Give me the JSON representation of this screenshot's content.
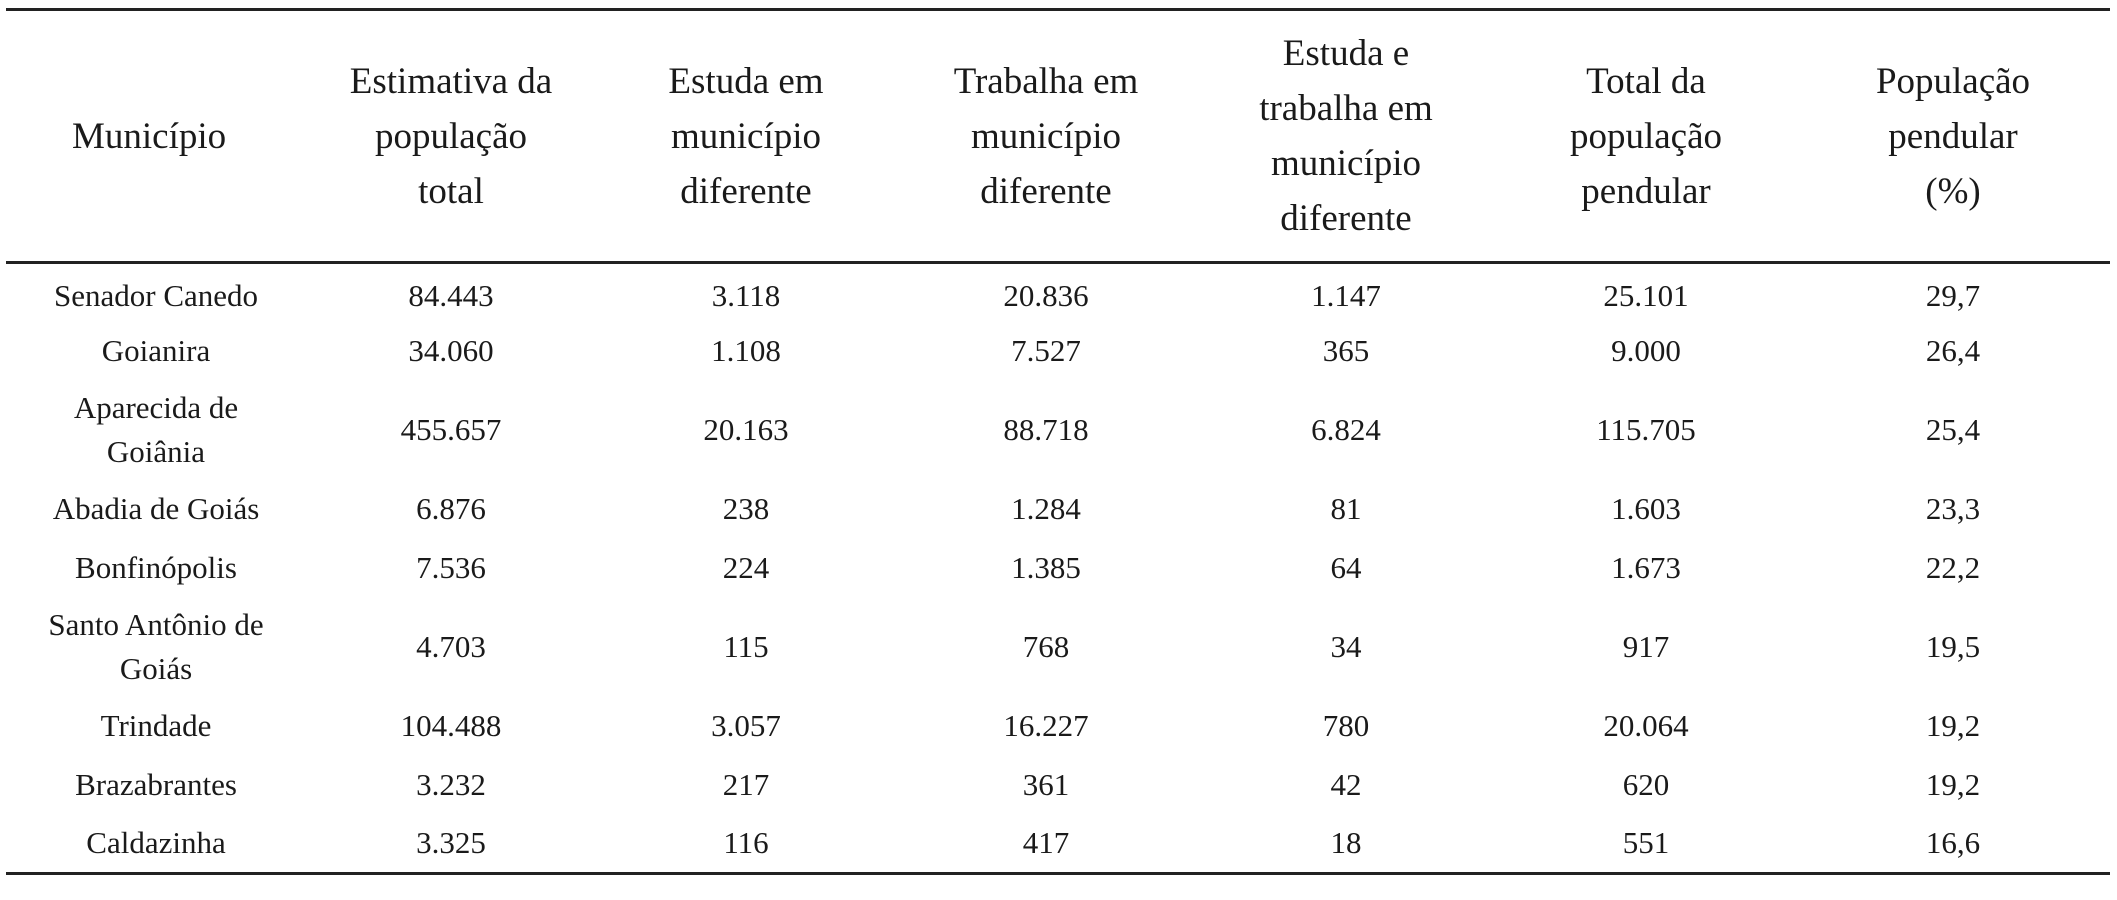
{
  "table": {
    "headers": [
      "Município",
      "Estimativa da\npopulação\ntotal",
      "Estuda em\nmunicípio\ndiferente",
      "Trabalha em\nmunicípio\ndiferente",
      "Estuda e\ntrabalha em\nmunicípio\ndiferente",
      "Total da\npopulação\npendular",
      "População\npendular\n(%)"
    ],
    "rows": [
      {
        "municipio": "Senador Canedo",
        "estimativa": "84.443",
        "estuda": "3.118",
        "trabalha": "20.836",
        "estuda_trabalha": "1.147",
        "total_pendular": "25.101",
        "pendular_pct": "29,7"
      },
      {
        "municipio": "Goianira",
        "estimativa": "34.060",
        "estuda": "1.108",
        "trabalha": "7.527",
        "estuda_trabalha": "365",
        "total_pendular": "9.000",
        "pendular_pct": "26,4"
      },
      {
        "municipio": "Aparecida de\nGoiânia",
        "estimativa": "455.657",
        "estuda": "20.163",
        "trabalha": "88.718",
        "estuda_trabalha": "6.824",
        "total_pendular": "115.705",
        "pendular_pct": "25,4"
      },
      {
        "municipio": "Abadia de Goiás",
        "estimativa": "6.876",
        "estuda": "238",
        "trabalha": "1.284",
        "estuda_trabalha": "81",
        "total_pendular": "1.603",
        "pendular_pct": "23,3"
      },
      {
        "municipio": "Bonfinópolis",
        "estimativa": "7.536",
        "estuda": "224",
        "trabalha": "1.385",
        "estuda_trabalha": "64",
        "total_pendular": "1.673",
        "pendular_pct": "22,2"
      },
      {
        "municipio": "Santo Antônio de\nGoiás",
        "estimativa": "4.703",
        "estuda": "115",
        "trabalha": "768",
        "estuda_trabalha": "34",
        "total_pendular": "917",
        "pendular_pct": "19,5"
      },
      {
        "municipio": "Trindade",
        "estimativa": "104.488",
        "estuda": "3.057",
        "trabalha": "16.227",
        "estuda_trabalha": "780",
        "total_pendular": "20.064",
        "pendular_pct": "19,2"
      },
      {
        "municipio": "Brazabrantes",
        "estimativa": "3.232",
        "estuda": "217",
        "trabalha": "361",
        "estuda_trabalha": "42",
        "total_pendular": "620",
        "pendular_pct": "19,2"
      },
      {
        "municipio": "Caldazinha",
        "estimativa": "3.325",
        "estuda": "116",
        "trabalha": "417",
        "estuda_trabalha": "18",
        "total_pendular": "551",
        "pendular_pct": "16,6"
      }
    ]
  }
}
